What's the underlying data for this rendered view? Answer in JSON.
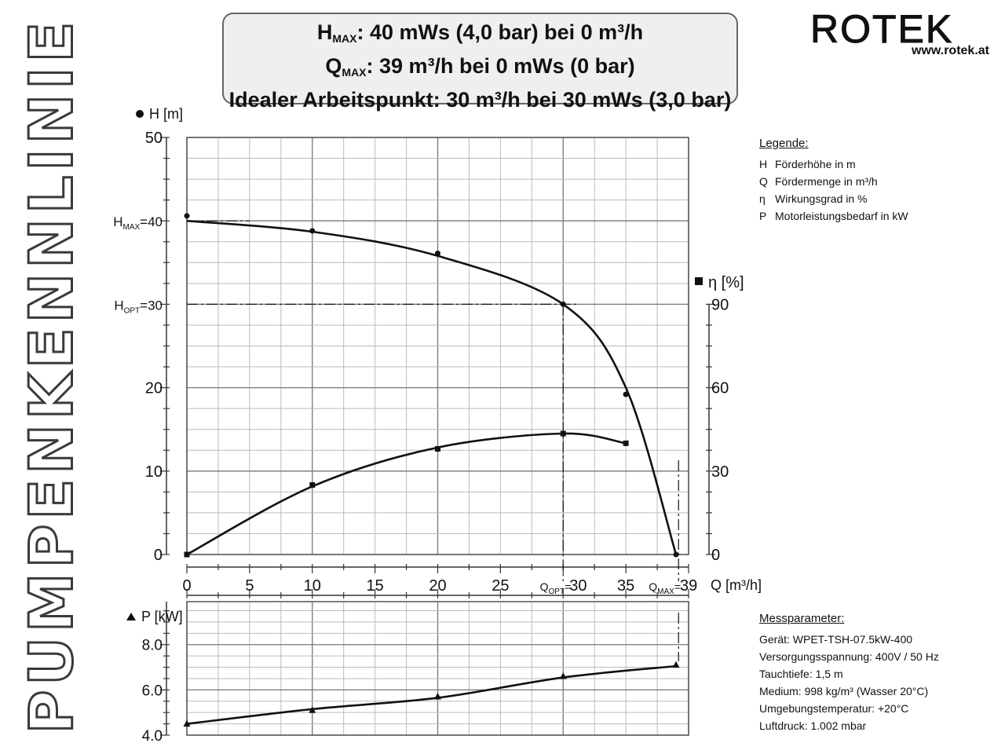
{
  "side_title": "PUMPENKENNLINIE",
  "header": {
    "line1": {
      "pre": "H",
      "sub": "MAX",
      "post": ": 40 mWs (4,0 bar) bei 0 m³/h"
    },
    "line2": {
      "pre": "Q",
      "sub": "MAX",
      "post": ": 39 m³/h bei 0 mWs (0 bar)"
    },
    "line3": "Idealer Arbeitspunkt: 30 m³/h bei 30 mWs (3,0 bar)"
  },
  "logo": {
    "brand": "ROTEK",
    "url": "www.rotek.at"
  },
  "legend": {
    "title": "Legende:",
    "items": [
      {
        "symbol": "H",
        "text": "Förderhöhe in m"
      },
      {
        "symbol": "Q",
        "text": "Fördermenge in m³/h"
      },
      {
        "symbol": "η",
        "text": "Wirkungsgrad in %"
      },
      {
        "symbol": "P",
        "text": "Motorleistungsbedarf in kW"
      }
    ]
  },
  "parameters": {
    "title": "Messparameter:",
    "lines": [
      "Gerät: WPET-TSH-07.5kW-400",
      "Versorgungsspannung: 400V / 50 Hz",
      "Tauchtiefe: 1,5 m",
      "Medium: 998 kg/m³ (Wasser 20°C)",
      "Umgebungstemperatur: +20°C",
      "Luftdruck: 1.002 mbar"
    ]
  },
  "chart_data": [
    {
      "type": "line",
      "xlabel": "Q [m³/h]",
      "xlim": [
        0,
        40
      ],
      "x_ticks": [
        "0",
        "5",
        "10",
        "15",
        "20",
        "25",
        "30",
        "35",
        "39"
      ],
      "x_tick_prefix_opt": "Q",
      "x_tick_prefix_opt_sub": "OPT",
      "x_tick_prefix_opt_post": "=",
      "x_tick_prefix_max": "Q",
      "x_tick_prefix_max_sub": "MAX",
      "x_tick_prefix_max_post": "=",
      "ylabel_left": "H [m]",
      "ylim_left": [
        0,
        50
      ],
      "y_ticks_left": [
        "0",
        "10",
        "20",
        "30",
        "40",
        "50"
      ],
      "hmax_label": {
        "pre": "H",
        "sub": "MAX",
        "post": "=40"
      },
      "hopt_label": {
        "pre": "H",
        "sub": "OPT",
        "post": "=30"
      },
      "ylabel_right": "η [%]",
      "ylim_right": [
        0,
        150
      ],
      "y_ticks_right": [
        "0",
        "30",
        "60",
        "90"
      ],
      "grid": true,
      "series": [
        {
          "name": "H",
          "axis": "left",
          "marker": "circle",
          "x": [
            0,
            10,
            20,
            30,
            35,
            39
          ],
          "y": [
            40.6,
            38.8,
            36.1,
            30.0,
            19.2,
            0.0
          ]
        },
        {
          "name": "η",
          "axis": "right",
          "marker": "square",
          "x": [
            0,
            10,
            20,
            30,
            35
          ],
          "y": [
            0,
            25,
            38,
            43.5,
            40
          ]
        }
      ],
      "operating_point": {
        "x": 30,
        "y": 30
      }
    },
    {
      "type": "line",
      "ylabel": "P [kW]",
      "ylim": [
        4.0,
        9.9
      ],
      "y_ticks": [
        "4.0",
        "6.0",
        "8.0"
      ],
      "grid": true,
      "series": [
        {
          "name": "P",
          "marker": "triangle",
          "x": [
            0,
            10,
            20,
            30,
            39
          ],
          "y": [
            4.5,
            5.1,
            5.7,
            6.6,
            7.1
          ]
        }
      ]
    }
  ]
}
